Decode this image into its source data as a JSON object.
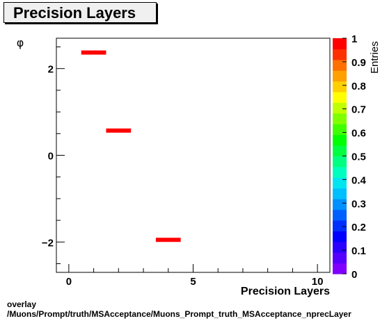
{
  "title": "Precision Layers",
  "footer_line1": "overlay",
  "footer_line2": "/Muons/Prompt/truth/MSAcceptance/Muons_Prompt_truth_MSAcceptance_nprecLayer",
  "chart_data": {
    "type": "heatmap",
    "title": "Precision Layers",
    "xlabel": "Precision Layers",
    "ylabel": "φ",
    "zlabel": "Entries",
    "xlim": [
      -0.5,
      10.5
    ],
    "ylim": [
      -2.7,
      2.7
    ],
    "zlim": [
      0,
      1
    ],
    "x_ticks": [
      0,
      5,
      10
    ],
    "y_ticks": [
      -2,
      0,
      2
    ],
    "z_ticks": [
      0,
      0.1,
      0.2,
      0.3,
      0.4,
      0.5,
      0.6,
      0.7,
      0.8,
      0.9,
      1
    ],
    "cells": [
      {
        "x0": 0.5,
        "x1": 1.5,
        "y": 2.37,
        "value": 1
      },
      {
        "x0": 1.5,
        "x1": 2.5,
        "y": 0.57,
        "value": 1
      },
      {
        "x0": 3.5,
        "x1": 4.5,
        "y": -1.95,
        "value": 1
      }
    ],
    "grid": false,
    "colors": [
      "#7f00ff",
      "#5500ff",
      "#2a00ff",
      "#0000ff",
      "#0030ff",
      "#0060ff",
      "#0090ff",
      "#00bfff",
      "#00e5f0",
      "#00ffbf",
      "#00ff80",
      "#00ff40",
      "#00ff00",
      "#40ff00",
      "#80ff00",
      "#c0ff00",
      "#ffff00",
      "#ffd000",
      "#ffa000",
      "#ff7000",
      "#ff3000",
      "#ff0000"
    ]
  }
}
